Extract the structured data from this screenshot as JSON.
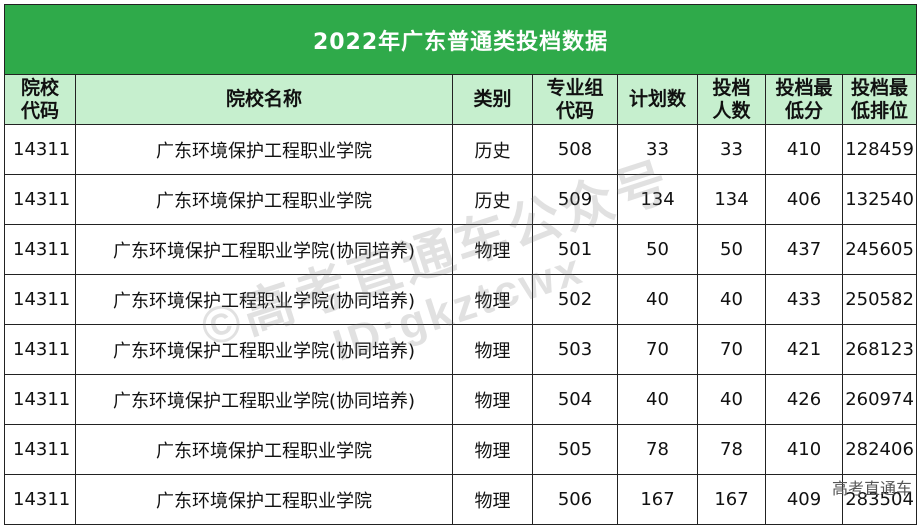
{
  "title": "2022年广东普通类投档数据",
  "headers": {
    "code_line1": "院校",
    "code_line2": "代码",
    "name": "院校名称",
    "category": "类别",
    "major_line1": "专业组",
    "major_line2": "代码",
    "plan": "计划数",
    "admit_line1": "投档",
    "admit_line2": "人数",
    "minscore_line1": "投档最",
    "minscore_line2": "低分",
    "minrank_line1": "投档最",
    "minrank_line2": "低排位"
  },
  "rows": [
    {
      "code": "14311",
      "name": "广东环境保护工程职业学院",
      "category": "历史",
      "group": "508",
      "plan": "33",
      "admitted": "33",
      "min_score": "410",
      "min_rank": "128459"
    },
    {
      "code": "14311",
      "name": "广东环境保护工程职业学院",
      "category": "历史",
      "group": "509",
      "plan": "134",
      "admitted": "134",
      "min_score": "406",
      "min_rank": "132540"
    },
    {
      "code": "14311",
      "name": "广东环境保护工程职业学院(协同培养)",
      "category": "物理",
      "group": "501",
      "plan": "50",
      "admitted": "50",
      "min_score": "437",
      "min_rank": "245605"
    },
    {
      "code": "14311",
      "name": "广东环境保护工程职业学院(协同培养)",
      "category": "物理",
      "group": "502",
      "plan": "40",
      "admitted": "40",
      "min_score": "433",
      "min_rank": "250582"
    },
    {
      "code": "14311",
      "name": "广东环境保护工程职业学院(协同培养)",
      "category": "物理",
      "group": "503",
      "plan": "70",
      "admitted": "70",
      "min_score": "421",
      "min_rank": "268123"
    },
    {
      "code": "14311",
      "name": "广东环境保护工程职业学院(协同培养)",
      "category": "物理",
      "group": "504",
      "plan": "40",
      "admitted": "40",
      "min_score": "426",
      "min_rank": "260974"
    },
    {
      "code": "14311",
      "name": "广东环境保护工程职业学院",
      "category": "物理",
      "group": "505",
      "plan": "78",
      "admitted": "78",
      "min_score": "410",
      "min_rank": "282406"
    },
    {
      "code": "14311",
      "name": "广东环境保护工程职业学院",
      "category": "物理",
      "group": "506",
      "plan": "167",
      "admitted": "167",
      "min_score": "409",
      "min_rank": "283504"
    }
  ],
  "watermark": {
    "line1": "©高考直通车公众号",
    "line2": "ID:gkztcwx"
  },
  "corner_mark": "高考直通车",
  "colors": {
    "title_bg": "#2faa4a",
    "header_bg": "#c6efce"
  }
}
